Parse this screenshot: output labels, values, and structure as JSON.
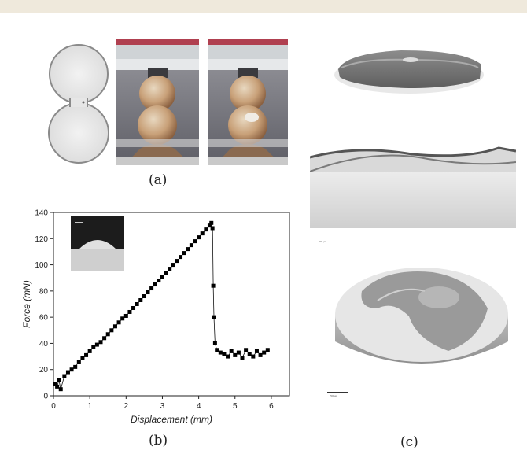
{
  "figure": {
    "panel_labels": {
      "a": "(a)",
      "b": "(b)",
      "c": "(c)"
    },
    "scale_bars": {
      "top": "500 μm",
      "bottom": "700 μm"
    }
  },
  "chart_data": {
    "type": "scatter",
    "xlabel": "Displacement (mm)",
    "ylabel": "Force (mN)",
    "xlim": [
      0,
      6.5
    ],
    "ylim": [
      0,
      140
    ],
    "xticks": [
      0,
      1,
      2,
      3,
      4,
      5,
      6
    ],
    "yticks": [
      0,
      20,
      40,
      60,
      80,
      100,
      120,
      140
    ],
    "grid": false,
    "inset": "micrograph top-left",
    "series": [
      {
        "marker": "square",
        "color": "#000000",
        "x": [
          0.05,
          0.1,
          0.15,
          0.2,
          0.3,
          0.4,
          0.5,
          0.6,
          0.7,
          0.8,
          0.9,
          1.0,
          1.1,
          1.2,
          1.3,
          1.4,
          1.5,
          1.6,
          1.7,
          1.8,
          1.9,
          2.0,
          2.1,
          2.2,
          2.3,
          2.4,
          2.5,
          2.6,
          2.7,
          2.8,
          2.9,
          3.0,
          3.1,
          3.2,
          3.3,
          3.4,
          3.5,
          3.6,
          3.7,
          3.8,
          3.9,
          4.0,
          4.1,
          4.2,
          4.3,
          4.35,
          4.38,
          4.4,
          4.42,
          4.45,
          4.5,
          4.6,
          4.7,
          4.8,
          4.9,
          5.0,
          5.1,
          5.2,
          5.3,
          5.4,
          5.5,
          5.6,
          5.7,
          5.8,
          5.9
        ],
        "y": [
          9,
          7,
          12,
          5,
          15,
          18,
          20,
          22,
          26,
          29,
          31,
          34,
          37,
          39,
          41,
          44,
          47,
          50,
          53,
          56,
          59,
          61,
          64,
          67,
          70,
          73,
          76,
          79,
          82,
          85,
          88,
          91,
          94,
          97,
          100,
          103,
          106,
          109,
          112,
          115,
          118,
          121,
          124,
          127,
          130,
          132,
          128,
          84,
          60,
          40,
          35,
          33,
          32,
          30,
          34,
          31,
          33,
          29,
          35,
          32,
          30,
          34,
          31,
          33,
          35
        ]
      }
    ]
  }
}
